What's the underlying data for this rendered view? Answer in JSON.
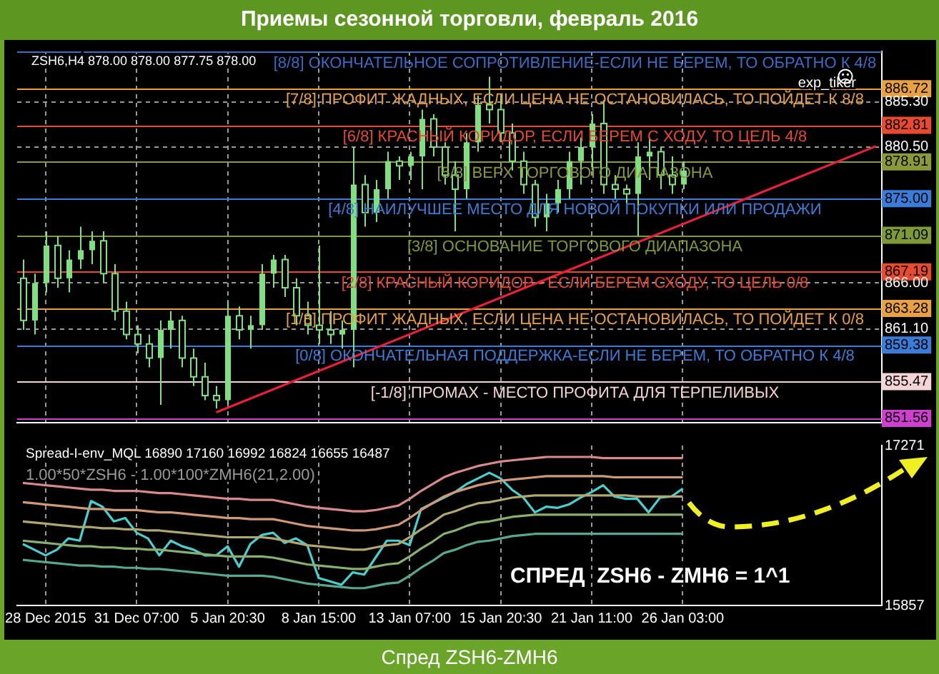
{
  "chart_data": [
    {
      "type": "candlestick",
      "title": "Приемы сезонной торговли, февраль 2016",
      "color": "#7ee07e",
      "annotations": [
        "ZSH6,H4 878.00 878.00 877.75 878.00",
        "exp_tiker"
      ],
      "categories": [
        null,
        null,
        null,
        null,
        null,
        null,
        null,
        null,
        null,
        null,
        null,
        null,
        null,
        null,
        null,
        null,
        null,
        null,
        null,
        null,
        null,
        null,
        null,
        null,
        null,
        null,
        null,
        null,
        null,
        null,
        null,
        null,
        null,
        null,
        null,
        null,
        null,
        null,
        null,
        null,
        null,
        null,
        null,
        null,
        null,
        null,
        null,
        null,
        null,
        null,
        null,
        null,
        null,
        null,
        null,
        null,
        null,
        null,
        null,
        null,
        null,
        null,
        null,
        null,
        null,
        null,
        null,
        null,
        null,
        null,
        null,
        null,
        null,
        null,
        null,
        null
      ],
      "ohlc": [
        [
          866.5,
          868.5,
          861.0,
          862.0
        ],
        [
          862,
          867,
          860.5,
          866
        ],
        [
          866,
          871.5,
          865,
          870
        ],
        [
          870,
          871,
          865.5,
          866.5
        ],
        [
          866.5,
          869.5,
          865,
          868.5
        ],
        [
          868.5,
          872,
          867.5,
          869.5
        ],
        [
          869.5,
          871.5,
          868,
          870.5
        ],
        [
          870.5,
          871.5,
          866,
          867
        ],
        [
          867,
          868,
          862,
          863
        ],
        [
          863,
          864,
          860,
          860.5
        ],
        [
          860.5,
          861.5,
          858.5,
          859.5
        ],
        [
          859.5,
          860.5,
          857,
          858
        ],
        [
          858,
          862,
          853,
          861
        ],
        [
          861,
          863,
          859,
          862
        ],
        [
          862,
          862.5,
          857,
          858
        ],
        [
          858,
          859,
          855,
          856
        ],
        [
          856,
          857.5,
          853.5,
          854
        ],
        [
          854,
          855,
          852.6,
          853.5
        ],
        [
          853.5,
          864,
          853,
          862.5
        ],
        [
          862.5,
          863.5,
          860,
          861
        ],
        [
          861,
          862.5,
          859,
          861.5
        ],
        [
          861.5,
          868,
          861,
          867
        ],
        [
          867,
          869,
          865.5,
          868.5
        ],
        [
          868.5,
          869,
          864.5,
          865.5
        ],
        [
          865.5,
          866.5,
          861.5,
          862.5
        ],
        [
          862.5,
          864,
          860.5,
          861.5
        ],
        [
          861.5,
          870,
          859.5,
          861
        ],
        [
          861,
          863,
          859.5,
          860.5
        ],
        [
          860.5,
          862,
          859,
          861
        ],
        [
          861,
          880.5,
          857,
          876.5
        ],
        [
          876.5,
          877.5,
          872,
          873.5
        ],
        [
          873.5,
          877,
          872.5,
          876
        ],
        [
          876,
          880,
          875,
          879
        ],
        [
          879,
          879.5,
          877,
          878.5
        ],
        [
          878.5,
          880,
          877,
          879.5
        ],
        [
          879.5,
          884.5,
          876,
          883.5
        ],
        [
          883.5,
          884,
          879.5,
          880.5
        ],
        [
          880.5,
          881,
          876.5,
          877.5
        ],
        [
          877.5,
          879,
          871.5,
          876
        ],
        [
          876,
          882,
          875,
          881
        ],
        [
          881,
          886,
          880,
          885
        ],
        [
          885,
          888,
          883,
          884.5
        ],
        [
          884.5,
          886,
          881,
          882
        ],
        [
          882,
          883,
          878,
          879
        ],
        [
          879,
          880,
          875.5,
          876.5
        ],
        [
          876.5,
          877,
          872,
          873
        ],
        [
          873,
          875.5,
          871.5,
          874.5
        ],
        [
          874.5,
          877,
          873.5,
          876
        ],
        [
          876,
          880,
          875,
          879
        ],
        [
          879,
          881.5,
          876.5,
          880.5
        ],
        [
          880.5,
          884,
          878,
          883
        ],
        [
          883,
          885.5,
          875.5,
          876.5
        ],
        [
          876.5,
          877.5,
          875,
          876
        ],
        [
          876,
          876.5,
          874.5,
          875.5
        ],
        [
          875.5,
          881,
          871,
          879.5
        ],
        [
          879.5,
          881.5,
          877,
          880
        ],
        [
          880,
          880.5,
          876,
          877.5
        ],
        [
          877.5,
          879.5,
          875.5,
          876.5
        ],
        [
          876.5,
          879,
          876,
          878
        ],
        null,
        null,
        null,
        null,
        null,
        null,
        null,
        null,
        null,
        null,
        null,
        null,
        null,
        null,
        null,
        null,
        null
      ],
      "series": [
        {
          "type": "line",
          "color": "#e8203a",
          "values": [
            null,
            null,
            null,
            null,
            null,
            null,
            null,
            null,
            null,
            null,
            null,
            null,
            null,
            null,
            null,
            null,
            null,
            852.2,
            null,
            null,
            null,
            null,
            null,
            null,
            null,
            null,
            null,
            null,
            null,
            null,
            null,
            null,
            null,
            null,
            null,
            null,
            null,
            null,
            null,
            null,
            null,
            null,
            null,
            null,
            null,
            null,
            null,
            null,
            null,
            null,
            null,
            null,
            null,
            null,
            null,
            null,
            null,
            null,
            null,
            null,
            null,
            null,
            null,
            null,
            null,
            null,
            null,
            null,
            null,
            null,
            null,
            null,
            null,
            null,
            null,
            880.6
          ]
        }
      ],
      "ylim": [
        851.1,
        890.7
      ],
      "yticks": [
        {
          "value": 886.72,
          "label": "886.72"
        },
        {
          "value": 885.3,
          "label": "885.30"
        },
        {
          "value": 882.81,
          "label": "882.81"
        },
        {
          "value": 880.5,
          "label": "880.50"
        },
        {
          "value": 878.91,
          "label": "878.91"
        },
        {
          "value": 875,
          "label": "875.00"
        },
        {
          "value": 871.09,
          "label": "871.09"
        },
        {
          "value": 867.19,
          "label": "867.19"
        },
        {
          "value": 866,
          "label": "866.00"
        },
        {
          "value": 863.28,
          "label": "863.28"
        },
        {
          "value": 861.1,
          "label": "861.10"
        },
        {
          "value": 859.38,
          "label": "859.38"
        },
        {
          "value": 855.47,
          "label": "855.47"
        },
        {
          "value": 851.56,
          "label": "851.56"
        }
      ],
      "ref_lines": [
        {
          "axis": "y",
          "value": 890.63,
          "color": "#3a6cc8",
          "label": "[8/8] ОКОНЧАТЕЛЬНОЕ СОПРОТИВЛЕНИЕ-ЕСЛИ НЕ БЕРЕМ, ТО ОБРАТНО К 4/8"
        },
        {
          "axis": "y",
          "value": 886.72,
          "color": "#e8a040",
          "label": "[7/8] ПРОФИТ ЖАДНЫХ, ЕСЛИ ЦЕНА НЕ ОСТАНОВИЛАСЬ, ТО ПОЙДЕТ К 8/8"
        },
        {
          "axis": "y",
          "value": 882.81,
          "color": "#e84a30",
          "label": "[6/8] КРАСНЫЙ КОРИДОР, ЕСЛИ БЕРЕМ С ХОДУ, ТО ЦЕЛЬ 4/8"
        },
        {
          "axis": "y",
          "value": 878.91,
          "color": "#8a9a38",
          "label": "[5/8] ВЕРХ ТОРГОВОГО ДИАПАЗОНА"
        },
        {
          "axis": "y",
          "value": 875,
          "color": "#3a7cd8",
          "label": "[4/8] НАИЛУЧШЕЕ МЕСТО ДЛЯ НОВОЙ ПОКУПКИ ИЛИ ПРОДАЖИ"
        },
        {
          "axis": "y",
          "value": 871.09,
          "color": "#7e9a38",
          "label": "[3/8] ОСНОВАНИЕ ТОРГОВОГО ДИАПАЗОНА"
        },
        {
          "axis": "y",
          "value": 867.19,
          "color": "#e84a30",
          "label": "[2/8] КРАСНЫЙ КОРИДОР - ЕСЛИ БЕРЕМ СХОДУ, ТО ЦЕЛЬ 0/8"
        },
        {
          "axis": "y",
          "value": 863.28,
          "color": "#e8a040",
          "label": "[1/8] ПРОФИТ ЖАДНЫХ, ЕСЛИ ЦЕНА НЕ ОСТАНОВИЛАСЬ, ТО ПОЙДЕТ К 0/8"
        },
        {
          "axis": "y",
          "value": 859.38,
          "color": "#3a7cd8",
          "label": "[0/8] ОКОНЧАТЕЛЬНАЯ ПОДДЕРЖКА-ЕСЛИ НЕ БЕРЕМ, ТО ОБРАТНО К 4/8"
        },
        {
          "axis": "y",
          "value": 855.47,
          "color": "#f4d4d4",
          "label": "[-1/8] ПРОМАХ - МЕСТО ПРОФИТА ДЛЯ ТЕРПЕЛИВЫХ"
        },
        {
          "axis": "y",
          "value": 851.56,
          "color": "#d040d0"
        }
      ],
      "grid": true,
      "tick_labels": "y"
    },
    {
      "type": "line",
      "annotations": [
        "Spread-I-env_MQL 16890 17160 16992 16824 16655 16487",
        "1.00*50*ZSH6 - 1.00*100*ZMH6(21,2.00)",
        "СПРЕД  ZSH6 - ZMH6 = 1^1",
        "Спред ZSH6-ZMH6"
      ],
      "categories": [
        null,
        null,
        "28 Dec 2015",
        null,
        null,
        null,
        null,
        null,
        null,
        null,
        "31 Dec 07:00",
        null,
        null,
        null,
        null,
        null,
        null,
        null,
        "5 Jan 20:30",
        null,
        null,
        null,
        null,
        null,
        null,
        null,
        "8 Jan 15:00",
        null,
        null,
        null,
        null,
        null,
        null,
        null,
        "13 Jan 07:00",
        null,
        null,
        null,
        null,
        null,
        null,
        null,
        "15 Jan 20:30",
        null,
        null,
        null,
        null,
        null,
        null,
        null,
        "21 Jan 11:00",
        null,
        null,
        null,
        null,
        null,
        null,
        null,
        "26 Jan 03:00",
        null,
        null,
        null,
        null,
        null,
        null,
        null,
        null,
        null,
        null,
        null,
        null,
        null,
        null,
        null,
        null,
        null
      ],
      "series": [
        {
          "color": "#d88a8a",
          "values": [
            16940,
            16930,
            16920,
            16910,
            16900,
            16890,
            16880,
            16880,
            16870,
            16870,
            16870,
            16860,
            16850,
            16850,
            16840,
            16830,
            16820,
            16810,
            16800,
            16800,
            16790,
            16790,
            16790,
            16770,
            16750,
            16730,
            16720,
            16710,
            16700,
            16690,
            16690,
            16700,
            16720,
            16740,
            16800,
            16870,
            16930,
            16990,
            17030,
            17060,
            17090,
            17110,
            17130,
            17140,
            17150,
            17160,
            17170,
            17170,
            17170,
            17170,
            17170,
            17160,
            17160,
            17160,
            17160,
            17160,
            17160,
            17160,
            17160,
            null,
            null,
            null,
            null,
            null,
            null,
            null,
            null,
            null,
            null,
            null,
            null,
            null,
            null,
            null,
            null,
            null
          ]
        },
        {
          "color": "#d09a78",
          "values": [
            16770,
            16760,
            16750,
            16740,
            16730,
            16720,
            16710,
            16710,
            16700,
            16700,
            16700,
            16690,
            16680,
            16680,
            16670,
            16660,
            16650,
            16640,
            16630,
            16630,
            16620,
            16620,
            16620,
            16600,
            16580,
            16560,
            16550,
            16540,
            16530,
            16520,
            16520,
            16530,
            16550,
            16570,
            16630,
            16700,
            16760,
            16820,
            16860,
            16890,
            16920,
            16940,
            16960,
            16970,
            16980,
            16990,
            17000,
            17000,
            17000,
            17000,
            17000,
            17000,
            16990,
            16990,
            16990,
            16990,
            16990,
            16990,
            16990,
            null,
            null,
            null,
            null,
            null,
            null,
            null,
            null,
            null,
            null,
            null,
            null,
            null,
            null,
            null,
            null,
            null
          ]
        },
        {
          "color": "#b0a870",
          "values": [
            16600,
            16590,
            16580,
            16570,
            16560,
            16550,
            16550,
            16540,
            16540,
            16530,
            16530,
            16520,
            16520,
            16510,
            16500,
            16490,
            16480,
            16470,
            16460,
            16460,
            16460,
            16460,
            16450,
            16430,
            16410,
            16390,
            16380,
            16370,
            16360,
            16350,
            16350,
            16370,
            16390,
            16400,
            16460,
            16530,
            16590,
            16660,
            16690,
            16730,
            16760,
            16770,
            16790,
            16810,
            16820,
            16830,
            16830,
            16830,
            16830,
            16830,
            16830,
            16830,
            16830,
            16830,
            16820,
            16820,
            16820,
            16820,
            16820,
            null,
            null,
            null,
            null,
            null,
            null,
            null,
            null,
            null,
            null,
            null,
            null,
            null,
            null,
            null,
            null,
            null
          ]
        },
        {
          "color": "#88b070",
          "values": [
            16430,
            16420,
            16410,
            16400,
            16390,
            16380,
            16380,
            16370,
            16370,
            16360,
            16360,
            16350,
            16350,
            16340,
            16330,
            16320,
            16310,
            16300,
            16290,
            16290,
            16290,
            16290,
            16280,
            16260,
            16240,
            16220,
            16210,
            16200,
            16190,
            16180,
            16180,
            16200,
            16220,
            16230,
            16290,
            16360,
            16420,
            16490,
            16520,
            16560,
            16590,
            16600,
            16620,
            16640,
            16650,
            16660,
            16660,
            16660,
            16660,
            16660,
            16660,
            16660,
            16660,
            16660,
            16660,
            16660,
            16660,
            16660,
            16660,
            null,
            null,
            null,
            null,
            null,
            null,
            null,
            null,
            null,
            null,
            null,
            null,
            null,
            null,
            null,
            null,
            null
          ]
        },
        {
          "color": "#58a890",
          "values": [
            16260,
            16250,
            16240,
            16230,
            16220,
            16210,
            16210,
            16200,
            16200,
            16190,
            16190,
            16180,
            16180,
            16170,
            16160,
            16150,
            16140,
            16130,
            16120,
            16120,
            16120,
            16120,
            16110,
            16090,
            16070,
            16050,
            16040,
            16030,
            16020,
            16010,
            16010,
            16030,
            16050,
            16060,
            16120,
            16190,
            16250,
            16320,
            16350,
            16390,
            16420,
            16430,
            16450,
            16470,
            16480,
            16490,
            16490,
            16490,
            16490,
            16490,
            16490,
            16490,
            16490,
            16490,
            16490,
            16490,
            16490,
            16490,
            16490,
            null,
            null,
            null,
            null,
            null,
            null,
            null,
            null,
            null,
            null,
            null,
            null,
            null,
            null,
            null,
            null,
            null
          ]
        },
        {
          "color": "#48d0d0",
          "values": [
            16400,
            16350,
            16300,
            16350,
            16450,
            16430,
            16780,
            16730,
            16600,
            16630,
            16500,
            16450,
            16300,
            16430,
            16380,
            16350,
            16300,
            16300,
            16380,
            16200,
            16400,
            16480,
            16500,
            16410,
            16450,
            16390,
            16100,
            16070,
            16040,
            16150,
            16130,
            16280,
            16430,
            16430,
            16390,
            16710,
            16760,
            16810,
            16860,
            16930,
            16980,
            17030,
            16980,
            16880,
            16810,
            16680,
            16730,
            16720,
            16750,
            16810,
            16860,
            16920,
            16820,
            16800,
            16800,
            16680,
            16810,
            16820,
            16890,
            null,
            null,
            null,
            null,
            null,
            null,
            null,
            null,
            null,
            null,
            null,
            null,
            null,
            null,
            null,
            null,
            null
          ]
        }
      ],
      "ylim": [
        15857,
        17271
      ],
      "yticks": [
        15857,
        17271
      ],
      "grid": "x"
    }
  ]
}
